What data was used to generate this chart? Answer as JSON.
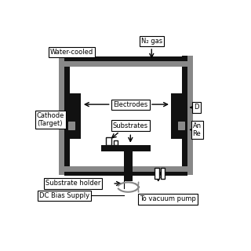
{
  "bg_color": "#ffffff",
  "gray": "#888888",
  "dark": "#111111",
  "lgray": "#aaaaaa",
  "labels": {
    "water_cooled": "Water-cooled",
    "n2_gas": "N₂ gas",
    "electrodes": "Electrodes",
    "cathode": "Cathode\n(Target)",
    "substrates": "Substrates",
    "substrate_holder": "Substrate holder",
    "dc_bias": "DC Bias Supply",
    "vacuum": "To vacuum pump",
    "anode_re": "An\nRe",
    "d_label": "D"
  },
  "fs": 6.0
}
